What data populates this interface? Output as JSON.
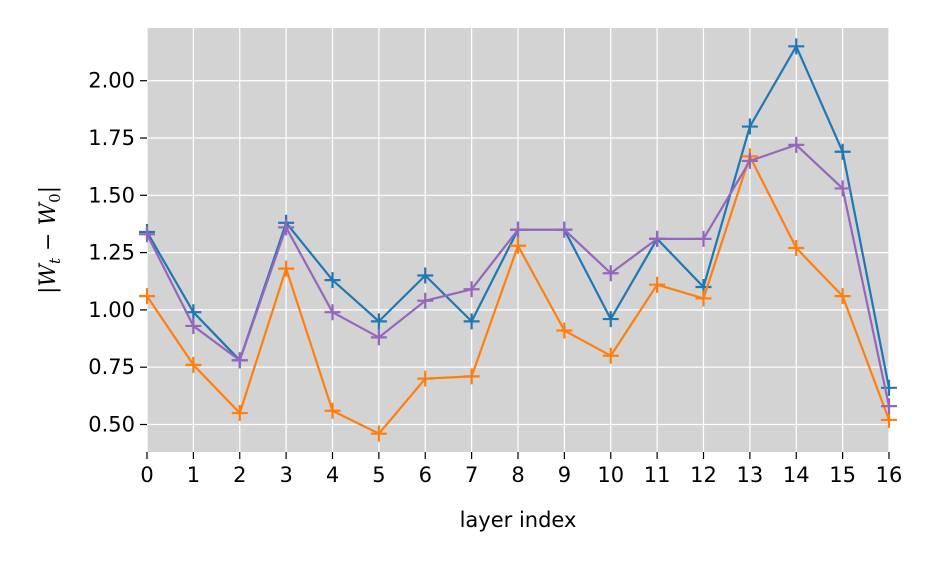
{
  "chart_data": {
    "type": "line",
    "xlabel": "layer index",
    "ylabel": {
      "text": "|W_t − W_0|",
      "parts": {
        "bar_left": "|",
        "w1": "W",
        "sub1": "t",
        "minus": " − ",
        "w2": "W",
        "sub2": "0",
        "bar_right": "|"
      }
    },
    "x": [
      0,
      1,
      2,
      3,
      4,
      5,
      6,
      7,
      8,
      9,
      10,
      11,
      12,
      13,
      14,
      15,
      16
    ],
    "xlim": [
      0,
      16
    ],
    "ylim": [
      0.38,
      2.23
    ],
    "x_ticks": [
      "0",
      "1",
      "2",
      "3",
      "4",
      "5",
      "6",
      "7",
      "8",
      "9",
      "10",
      "11",
      "12",
      "13",
      "14",
      "15",
      "16"
    ],
    "y_ticks": [
      "0.50",
      "0.75",
      "1.00",
      "1.25",
      "1.50",
      "1.75",
      "2.00"
    ],
    "grid": true,
    "background": "#d3d3d3",
    "marker": "+",
    "series": [
      {
        "color": "#1f77b4",
        "values": [
          1.34,
          0.99,
          0.78,
          1.38,
          1.13,
          0.95,
          1.15,
          0.95,
          1.35,
          1.35,
          0.96,
          1.31,
          1.1,
          1.8,
          2.15,
          1.69,
          0.66
        ]
      },
      {
        "color": "#ff7f0e",
        "values": [
          1.06,
          0.76,
          0.55,
          1.18,
          0.56,
          0.46,
          0.7,
          0.71,
          1.28,
          0.91,
          0.8,
          1.11,
          1.05,
          1.67,
          1.27,
          1.06,
          0.52
        ]
      },
      {
        "color": "#9467bd",
        "values": [
          1.33,
          0.93,
          0.78,
          1.36,
          0.99,
          0.88,
          1.04,
          1.09,
          1.35,
          1.35,
          1.16,
          1.31,
          1.31,
          1.65,
          1.72,
          1.53,
          0.58
        ]
      }
    ]
  }
}
